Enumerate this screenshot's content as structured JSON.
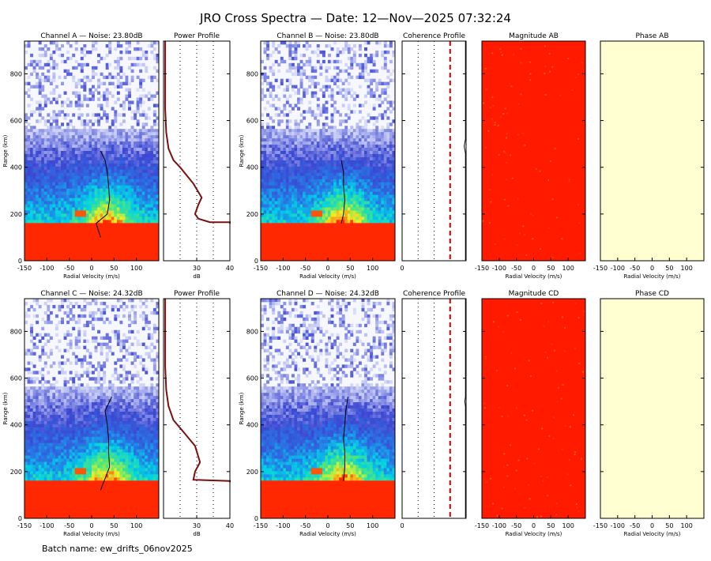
{
  "title": "JRO Cross Spectra — Date: 12—Nov—2025 07:32:24",
  "footer": "Batch name: ew_drifts_06nov2025",
  "labels": {
    "range_axis": "Range (km)",
    "velocity_axis": "Radial Velocity (m/s)",
    "db_axis": "dB",
    "power_profile": "Power Profile",
    "coherence_profile": "Coherence Profile"
  },
  "colors": {
    "spectra_low": "#2f3fcf",
    "spectra_high": "#ff0000",
    "magnitude_fill": "#ff1a00",
    "phase_fill": "#ffffd2",
    "profile_line": "#7a1010",
    "coherence_threshold": "#cc0000"
  },
  "chart_data": [
    {
      "id": "spectra_a",
      "type": "heatmap",
      "title": "Channel A — Noise: 23.80dB",
      "xlabel": "Radial Velocity (m/s)",
      "ylabel": "Range (km)",
      "xlim": [
        -150,
        150
      ],
      "ylim": [
        0,
        940
      ],
      "xticks": [
        -150,
        -100,
        -50,
        0,
        50,
        100
      ],
      "yticks": [
        0,
        200,
        400,
        600,
        800
      ],
      "noise_top_km": 560,
      "saturated_below_km": 160,
      "doppler_center_ms": [
        [
          100,
          20
        ],
        [
          160,
          10
        ],
        [
          200,
          35
        ],
        [
          260,
          40
        ],
        [
          320,
          38
        ],
        [
          380,
          35
        ],
        [
          430,
          30
        ],
        [
          470,
          20
        ]
      ]
    },
    {
      "id": "power_a",
      "type": "line",
      "title": "Power Profile",
      "xlabel": "dB",
      "xticks": [
        30,
        40
      ],
      "xlim": [
        20,
        40
      ],
      "ylim": [
        0,
        940
      ],
      "x": [
        20.5,
        20.5,
        20.8,
        21.5,
        23.0,
        25.0,
        29.0,
        31.5,
        30.5,
        29.5,
        30.5,
        34.0,
        40.0,
        40.0
      ],
      "y": [
        940,
        650,
        550,
        480,
        430,
        400,
        330,
        270,
        240,
        200,
        180,
        165,
        165,
        160
      ]
    },
    {
      "id": "spectra_b",
      "type": "heatmap",
      "title": "Channel B — Noise: 23.80dB",
      "xlabel": "Radial Velocity (m/s)",
      "ylabel": "Range (km)",
      "xlim": [
        -150,
        150
      ],
      "ylim": [
        0,
        940
      ],
      "xticks": [
        -150,
        -100,
        -50,
        0,
        50,
        100
      ],
      "yticks": [
        0,
        200,
        400,
        600,
        800
      ],
      "noise_top_km": 560,
      "saturated_below_km": 160,
      "doppler_center_ms": [
        [
          160,
          30
        ],
        [
          200,
          35
        ],
        [
          260,
          38
        ],
        [
          320,
          35
        ],
        [
          380,
          35
        ],
        [
          430,
          30
        ]
      ]
    },
    {
      "id": "coherence_ab",
      "type": "line",
      "title": "Coherence Profile",
      "xticks": [
        0
      ],
      "xlim": [
        0,
        1
      ],
      "ylim": [
        0,
        940
      ],
      "threshold": 0.75,
      "x": [
        0.99,
        0.99,
        0.97,
        0.99,
        0.99
      ],
      "y": [
        940,
        520,
        490,
        460,
        0
      ]
    },
    {
      "id": "magnitude_ab",
      "type": "heatmap",
      "title": "Magnitude AB",
      "xlabel": "Radial Velocity (m/s)",
      "xlim": [
        -150,
        150
      ],
      "ylim": [
        0,
        940
      ],
      "xticks": [
        -150,
        -100,
        -50,
        0,
        50,
        100
      ]
    },
    {
      "id": "phase_ab",
      "type": "heatmap",
      "title": "Phase AB",
      "xlabel": "Radial Velocity (m/s)",
      "xlim": [
        -150,
        150
      ],
      "ylim": [
        0,
        940
      ],
      "xticks": [
        -150,
        -100,
        -50,
        0,
        50,
        100
      ]
    },
    {
      "id": "spectra_c",
      "type": "heatmap",
      "title": "Channel C — Noise: 24.32dB",
      "xlabel": "Radial Velocity (m/s)",
      "ylabel": "Range (km)",
      "xlim": [
        -150,
        150
      ],
      "ylim": [
        0,
        940
      ],
      "xticks": [
        -150,
        -100,
        -50,
        0,
        50,
        100
      ],
      "yticks": [
        0,
        200,
        400,
        600,
        800
      ],
      "noise_top_km": 560,
      "saturated_below_km": 160,
      "doppler_center_ms": [
        [
          120,
          20
        ],
        [
          170,
          30
        ],
        [
          220,
          40
        ],
        [
          280,
          38
        ],
        [
          340,
          38
        ],
        [
          400,
          35
        ],
        [
          460,
          30
        ],
        [
          520,
          45
        ]
      ]
    },
    {
      "id": "power_c",
      "type": "line",
      "title": "Power Profile",
      "xlabel": "dB",
      "xticks": [
        30,
        40
      ],
      "xlim": [
        20,
        40
      ],
      "ylim": [
        0,
        940
      ],
      "x": [
        20.5,
        20.5,
        20.8,
        21.5,
        23.0,
        26.0,
        29.5,
        31.0,
        29.5,
        29.0,
        40.0,
        40.0
      ],
      "y": [
        940,
        650,
        550,
        480,
        420,
        370,
        310,
        240,
        200,
        165,
        160,
        155
      ]
    },
    {
      "id": "spectra_d",
      "type": "heatmap",
      "title": "Channel D — Noise: 24.32dB",
      "xlabel": "Radial Velocity (m/s)",
      "ylabel": "Range (km)",
      "xlim": [
        -150,
        150
      ],
      "ylim": [
        0,
        940
      ],
      "xticks": [
        -150,
        -100,
        -50,
        0,
        50,
        100
      ],
      "yticks": [
        0,
        200,
        400,
        600,
        800
      ],
      "noise_top_km": 560,
      "saturated_below_km": 160,
      "doppler_center_ms": [
        [
          160,
          35
        ],
        [
          220,
          38
        ],
        [
          280,
          38
        ],
        [
          340,
          35
        ],
        [
          400,
          38
        ],
        [
          460,
          40
        ],
        [
          520,
          45
        ]
      ]
    },
    {
      "id": "coherence_cd",
      "type": "line",
      "title": "Coherence Profile",
      "xticks": [
        0
      ],
      "xlim": [
        0,
        1
      ],
      "ylim": [
        0,
        940
      ],
      "threshold": 0.75,
      "x": [
        0.99,
        0.99,
        0.98,
        0.99,
        0.99
      ],
      "y": [
        940,
        520,
        500,
        480,
        0
      ]
    },
    {
      "id": "magnitude_cd",
      "type": "heatmap",
      "title": "Magnitude CD",
      "xlabel": "Radial Velocity (m/s)",
      "xlim": [
        -150,
        150
      ],
      "ylim": [
        0,
        940
      ],
      "xticks": [
        -150,
        -100,
        -50,
        0,
        50,
        100
      ]
    },
    {
      "id": "phase_cd",
      "type": "heatmap",
      "title": "Phase CD",
      "xlabel": "Radial Velocity (m/s)",
      "xlim": [
        -150,
        150
      ],
      "ylim": [
        0,
        940
      ],
      "xticks": [
        -150,
        -100,
        -50,
        0,
        50,
        100
      ]
    }
  ]
}
